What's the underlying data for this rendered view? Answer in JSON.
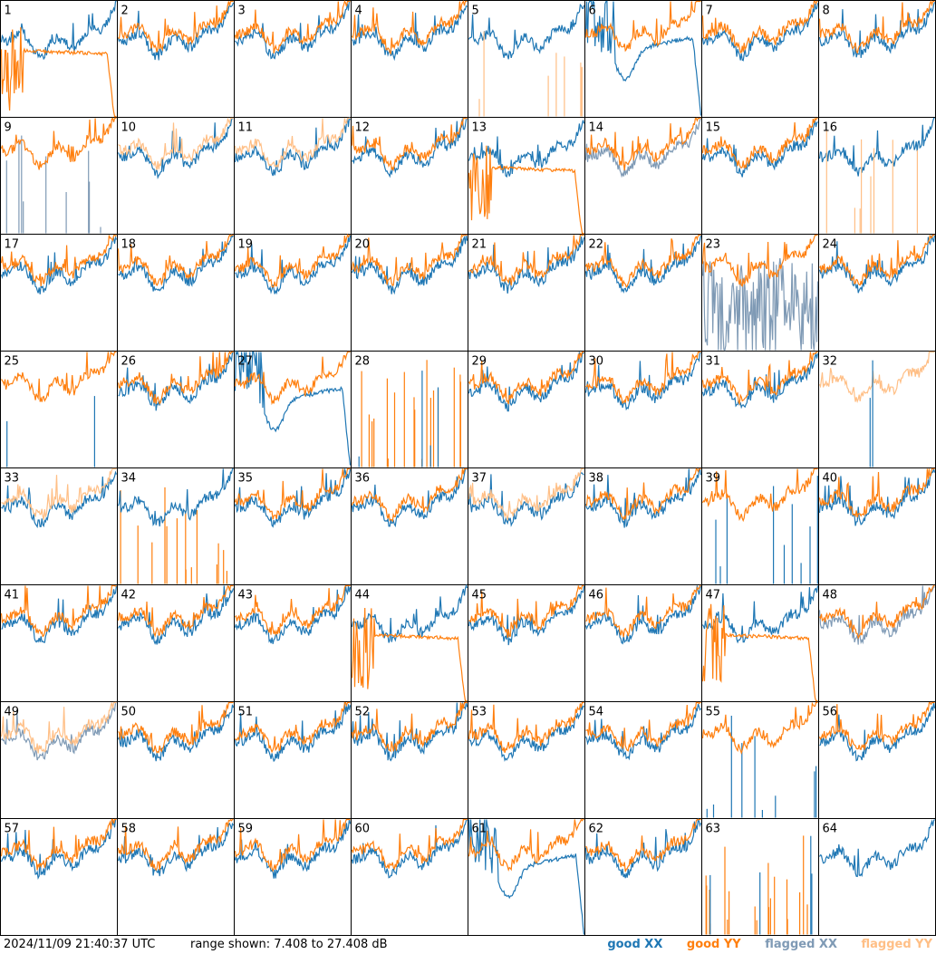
{
  "footer": {
    "timestamp": "2024/11/09 21:40:37 UTC",
    "range_text": "range shown: 7.408 to 27.408 dB"
  },
  "legend": [
    {
      "label": "good XX",
      "color": "#1f77b4"
    },
    {
      "label": "good YY",
      "color": "#ff7f0e"
    },
    {
      "label": "flagged XX",
      "color": "#7f9ab5"
    },
    {
      "label": "flagged YY",
      "color": "#ffbf86"
    }
  ],
  "chart_data": {
    "type": "line",
    "grid": "8x8 small multiples",
    "ylim": [
      7.408,
      27.408
    ],
    "yunit": "dB",
    "panels": [
      {
        "id": 1,
        "xx": "good",
        "yy": "good",
        "shape": "yy_droop"
      },
      {
        "id": 2,
        "xx": "good",
        "yy": "good",
        "shape": "normal"
      },
      {
        "id": 3,
        "xx": "good",
        "yy": "good",
        "shape": "normal"
      },
      {
        "id": 4,
        "xx": "good",
        "yy": "good",
        "shape": "normal"
      },
      {
        "id": 5,
        "xx": "good",
        "yy": "flagged",
        "shape": "yy_spikes"
      },
      {
        "id": 6,
        "xx": "good",
        "yy": "good",
        "shape": "xx_droop"
      },
      {
        "id": 7,
        "xx": "good",
        "yy": "good",
        "shape": "normal"
      },
      {
        "id": 8,
        "xx": "good",
        "yy": "good",
        "shape": "normal"
      },
      {
        "id": 9,
        "xx": "flagged",
        "yy": "good",
        "shape": "xx_spikes"
      },
      {
        "id": 10,
        "xx": "good",
        "yy": "flagged",
        "shape": "normal"
      },
      {
        "id": 11,
        "xx": "good",
        "yy": "flagged",
        "shape": "normal"
      },
      {
        "id": 12,
        "xx": "good",
        "yy": "good",
        "shape": "normal"
      },
      {
        "id": 13,
        "xx": "good",
        "yy": "good",
        "shape": "yy_droop"
      },
      {
        "id": 14,
        "xx": "flagged",
        "yy": "good",
        "shape": "normal"
      },
      {
        "id": 15,
        "xx": "good",
        "yy": "good",
        "shape": "normal"
      },
      {
        "id": 16,
        "xx": "good",
        "yy": "flagged",
        "shape": "yy_spikes"
      },
      {
        "id": 17,
        "xx": "good",
        "yy": "good",
        "shape": "normal"
      },
      {
        "id": 18,
        "xx": "good",
        "yy": "good",
        "shape": "normal"
      },
      {
        "id": 19,
        "xx": "good",
        "yy": "good",
        "shape": "normal"
      },
      {
        "id": 20,
        "xx": "good",
        "yy": "good",
        "shape": "normal"
      },
      {
        "id": 21,
        "xx": "good",
        "yy": "good",
        "shape": "normal"
      },
      {
        "id": 22,
        "xx": "good",
        "yy": "good",
        "shape": "normal"
      },
      {
        "id": 23,
        "xx": "flagged",
        "yy": "good",
        "shape": "xx_noise"
      },
      {
        "id": 24,
        "xx": "good",
        "yy": "good",
        "shape": "normal"
      },
      {
        "id": 25,
        "xx": "good",
        "yy": "good",
        "shape": "yy_only"
      },
      {
        "id": 26,
        "xx": "good",
        "yy": "good",
        "shape": "normal"
      },
      {
        "id": 27,
        "xx": "good",
        "yy": "good",
        "shape": "xx_droop"
      },
      {
        "id": 28,
        "xx": "good",
        "yy": "good",
        "shape": "spikes_both"
      },
      {
        "id": 29,
        "xx": "good",
        "yy": "good",
        "shape": "normal"
      },
      {
        "id": 30,
        "xx": "good",
        "yy": "good",
        "shape": "normal"
      },
      {
        "id": 31,
        "xx": "good",
        "yy": "good",
        "shape": "normal"
      },
      {
        "id": 32,
        "xx": "good",
        "yy": "flagged",
        "shape": "yy_only"
      },
      {
        "id": 33,
        "xx": "good",
        "yy": "flagged",
        "shape": "normal"
      },
      {
        "id": 34,
        "xx": "good",
        "yy": "good",
        "shape": "yy_spikes_bottom"
      },
      {
        "id": 35,
        "xx": "good",
        "yy": "good",
        "shape": "normal"
      },
      {
        "id": 36,
        "xx": "good",
        "yy": "good",
        "shape": "normal"
      },
      {
        "id": 37,
        "xx": "good",
        "yy": "flagged",
        "shape": "normal"
      },
      {
        "id": 38,
        "xx": "good",
        "yy": "good",
        "shape": "normal"
      },
      {
        "id": 39,
        "xx": "good",
        "yy": "good",
        "shape": "xx_spikes"
      },
      {
        "id": 40,
        "xx": "good",
        "yy": "good",
        "shape": "normal"
      },
      {
        "id": 41,
        "xx": "good",
        "yy": "good",
        "shape": "normal"
      },
      {
        "id": 42,
        "xx": "good",
        "yy": "good",
        "shape": "normal"
      },
      {
        "id": 43,
        "xx": "good",
        "yy": "good",
        "shape": "normal"
      },
      {
        "id": 44,
        "xx": "good",
        "yy": "good",
        "shape": "yy_droop"
      },
      {
        "id": 45,
        "xx": "good",
        "yy": "good",
        "shape": "normal"
      },
      {
        "id": 46,
        "xx": "good",
        "yy": "good",
        "shape": "normal"
      },
      {
        "id": 47,
        "xx": "good",
        "yy": "good",
        "shape": "yy_droop"
      },
      {
        "id": 48,
        "xx": "flagged",
        "yy": "good",
        "shape": "normal"
      },
      {
        "id": 49,
        "xx": "flagged",
        "yy": "flagged",
        "shape": "normal"
      },
      {
        "id": 50,
        "xx": "good",
        "yy": "good",
        "shape": "normal"
      },
      {
        "id": 51,
        "xx": "good",
        "yy": "good",
        "shape": "normal"
      },
      {
        "id": 52,
        "xx": "good",
        "yy": "good",
        "shape": "normal"
      },
      {
        "id": 53,
        "xx": "good",
        "yy": "good",
        "shape": "normal"
      },
      {
        "id": 54,
        "xx": "good",
        "yy": "good",
        "shape": "normal"
      },
      {
        "id": 55,
        "xx": "good",
        "yy": "good",
        "shape": "xx_spikes"
      },
      {
        "id": 56,
        "xx": "good",
        "yy": "good",
        "shape": "normal"
      },
      {
        "id": 57,
        "xx": "good",
        "yy": "good",
        "shape": "normal"
      },
      {
        "id": 58,
        "xx": "good",
        "yy": "good",
        "shape": "normal"
      },
      {
        "id": 59,
        "xx": "good",
        "yy": "good",
        "shape": "normal"
      },
      {
        "id": 60,
        "xx": "good",
        "yy": "good",
        "shape": "normal"
      },
      {
        "id": 61,
        "xx": "good",
        "yy": "good",
        "shape": "xx_droop"
      },
      {
        "id": 62,
        "xx": "good",
        "yy": "good",
        "shape": "normal"
      },
      {
        "id": 63,
        "xx": "good",
        "yy": "good",
        "shape": "spikes_both"
      },
      {
        "id": 64,
        "xx": "good",
        "yy": "good",
        "shape": "xx_only"
      }
    ]
  }
}
